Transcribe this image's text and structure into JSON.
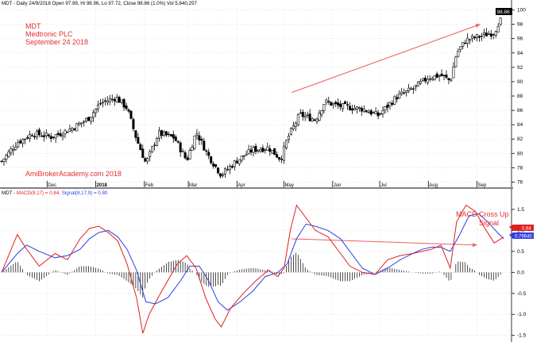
{
  "price_panel": {
    "header": "MDT - Daily 24/9/2018 Open 97.99, Hi 98.96, Lo 97.72, Close 98.86 (1.0%) Vol 5,640,257",
    "annotation_lines": [
      "MDT",
      "Medtronic PLC",
      "September 24 2018"
    ],
    "watermark": "AmiBrokerAcademy.com  2018",
    "last_price_tag": "98.86"
  },
  "macd_panel": {
    "header_prefix": "MDT - ",
    "header_macd": "MACD(8,17) = 0.84,",
    "header_signal": " Signal(8,17,9) = 0.80",
    "annotation_lines": [
      "MACD Cross Up",
      "Signal"
    ],
    "tag_macd": "0.84",
    "tag_signal": "0.79640"
  },
  "colors": {
    "background": "#ffffff",
    "grid": "#d9d9d9",
    "axis": "#000000",
    "annotation_red": "#e03030",
    "macd_line": "#e02020",
    "signal_line": "#2f3fe0",
    "candle": "#000000",
    "histogram": "#000000",
    "trend_arrow": "#e86060"
  },
  "chart_data": [
    {
      "type": "candlestick",
      "symbol": "MDT",
      "title": "MDT - Daily 24/9/2018",
      "x_tick_labels": [
        "Dec",
        "2018",
        "Feb",
        "Mar",
        "Apr",
        "May",
        "Jun",
        "Jul",
        "Aug",
        "Sep"
      ],
      "x_tick_days": [
        29,
        60,
        91,
        119,
        150,
        180,
        211,
        241,
        272,
        303
      ],
      "x_range_days": [
        0,
        324
      ],
      "y_ticks": [
        76,
        78,
        80,
        82,
        84,
        86,
        88,
        90,
        92,
        94,
        96,
        98,
        100
      ],
      "ylim": [
        75.5,
        100.5
      ],
      "grid": true,
      "series_anchor_points": [
        {
          "day": 0,
          "close": 78.9
        },
        {
          "day": 10,
          "close": 81.5
        },
        {
          "day": 20,
          "close": 82.8
        },
        {
          "day": 32,
          "close": 82.3
        },
        {
          "day": 45,
          "close": 83.5
        },
        {
          "day": 55,
          "close": 84.8
        },
        {
          "day": 63,
          "close": 87.0
        },
        {
          "day": 73,
          "close": 87.8
        },
        {
          "day": 80,
          "close": 86.3
        },
        {
          "day": 86,
          "close": 82.0
        },
        {
          "day": 92,
          "close": 78.6
        },
        {
          "day": 100,
          "close": 82.8
        },
        {
          "day": 110,
          "close": 82.2
        },
        {
          "day": 118,
          "close": 79.0
        },
        {
          "day": 124,
          "close": 83.0
        },
        {
          "day": 132,
          "close": 79.6
        },
        {
          "day": 140,
          "close": 77.0
        },
        {
          "day": 150,
          "close": 79.0
        },
        {
          "day": 160,
          "close": 80.5
        },
        {
          "day": 170,
          "close": 80.8
        },
        {
          "day": 178,
          "close": 79.2
        },
        {
          "day": 182,
          "close": 82.0
        },
        {
          "day": 190,
          "close": 85.4
        },
        {
          "day": 200,
          "close": 84.7
        },
        {
          "day": 206,
          "close": 87.2
        },
        {
          "day": 215,
          "close": 86.6
        },
        {
          "day": 230,
          "close": 86.2
        },
        {
          "day": 240,
          "close": 85.3
        },
        {
          "day": 252,
          "close": 87.9
        },
        {
          "day": 262,
          "close": 89.0
        },
        {
          "day": 272,
          "close": 90.6
        },
        {
          "day": 280,
          "close": 90.9
        },
        {
          "day": 286,
          "close": 90.1
        },
        {
          "day": 290,
          "close": 94.0
        },
        {
          "day": 296,
          "close": 95.8
        },
        {
          "day": 306,
          "close": 96.4
        },
        {
          "day": 314,
          "close": 96.9
        },
        {
          "day": 318,
          "close": 98.86
        }
      ],
      "last_bar": {
        "open": 97.99,
        "high": 98.96,
        "low": 97.72,
        "close": 98.86,
        "change_pct": 1.0,
        "volume": 5640257
      },
      "trend_line": {
        "from": {
          "day": 185,
          "price": 88.5
        },
        "to": {
          "day": 305,
          "price": 98.0
        }
      }
    },
    {
      "type": "line",
      "title": "MACD(8,17) / Signal(8,17,9)",
      "ylim": [
        -1.6,
        1.8
      ],
      "y_ticks": [
        -1.5,
        -1.0,
        -0.5,
        0.0,
        0.5,
        1.0,
        1.5
      ],
      "grid": true,
      "series": [
        {
          "name": "MACD(8,17)",
          "last_value": 0.84,
          "points": [
            [
              0,
              0.0
            ],
            [
              10,
              0.9
            ],
            [
              16,
              0.55
            ],
            [
              24,
              0.15
            ],
            [
              34,
              0.45
            ],
            [
              42,
              0.3
            ],
            [
              50,
              0.8
            ],
            [
              56,
              1.05
            ],
            [
              62,
              1.1
            ],
            [
              68,
              0.95
            ],
            [
              74,
              0.75
            ],
            [
              80,
              0.2
            ],
            [
              86,
              -0.6
            ],
            [
              90,
              -1.45
            ],
            [
              94,
              -1.0
            ],
            [
              102,
              -0.45
            ],
            [
              112,
              0.2
            ],
            [
              118,
              0.4
            ],
            [
              124,
              0.1
            ],
            [
              130,
              -0.6
            ],
            [
              136,
              -1.1
            ],
            [
              140,
              -1.3
            ],
            [
              146,
              -0.85
            ],
            [
              154,
              -0.5
            ],
            [
              162,
              -0.2
            ],
            [
              170,
              0.05
            ],
            [
              176,
              -0.1
            ],
            [
              180,
              0.1
            ],
            [
              184,
              1.0
            ],
            [
              188,
              1.6
            ],
            [
              194,
              1.3
            ],
            [
              200,
              1.0
            ],
            [
              208,
              0.85
            ],
            [
              216,
              0.45
            ],
            [
              222,
              0.15
            ],
            [
              230,
              0.0
            ],
            [
              238,
              -0.05
            ],
            [
              246,
              0.3
            ],
            [
              254,
              0.4
            ],
            [
              262,
              0.45
            ],
            [
              268,
              0.5
            ],
            [
              274,
              0.55
            ],
            [
              280,
              0.65
            ],
            [
              286,
              0.1
            ],
            [
              290,
              1.2
            ],
            [
              296,
              1.6
            ],
            [
              302,
              1.45
            ],
            [
              308,
              1.05
            ],
            [
              314,
              0.7
            ],
            [
              320,
              0.84
            ]
          ]
        },
        {
          "name": "Signal(8,17,9)",
          "last_value": 0.8,
          "points": [
            [
              0,
              0.0
            ],
            [
              10,
              0.45
            ],
            [
              16,
              0.65
            ],
            [
              24,
              0.5
            ],
            [
              34,
              0.35
            ],
            [
              42,
              0.4
            ],
            [
              50,
              0.55
            ],
            [
              56,
              0.8
            ],
            [
              62,
              0.95
            ],
            [
              68,
              1.0
            ],
            [
              74,
              0.85
            ],
            [
              80,
              0.55
            ],
            [
              86,
              0.05
            ],
            [
              92,
              -0.7
            ],
            [
              98,
              -0.75
            ],
            [
              106,
              -0.6
            ],
            [
              114,
              -0.2
            ],
            [
              120,
              0.15
            ],
            [
              126,
              0.15
            ],
            [
              132,
              -0.2
            ],
            [
              138,
              -0.7
            ],
            [
              144,
              -0.9
            ],
            [
              152,
              -0.7
            ],
            [
              160,
              -0.45
            ],
            [
              168,
              -0.1
            ],
            [
              176,
              0.0
            ],
            [
              182,
              0.2
            ],
            [
              188,
              0.8
            ],
            [
              194,
              1.15
            ],
            [
              200,
              1.1
            ],
            [
              208,
              1.0
            ],
            [
              216,
              0.8
            ],
            [
              222,
              0.5
            ],
            [
              230,
              0.1
            ],
            [
              238,
              -0.05
            ],
            [
              246,
              0.1
            ],
            [
              254,
              0.3
            ],
            [
              262,
              0.45
            ],
            [
              268,
              0.55
            ],
            [
              274,
              0.6
            ],
            [
              280,
              0.6
            ],
            [
              286,
              0.5
            ],
            [
              292,
              0.9
            ],
            [
              298,
              1.35
            ],
            [
              304,
              1.4
            ],
            [
              310,
              1.2
            ],
            [
              316,
              0.95
            ],
            [
              320,
              0.8
            ]
          ]
        }
      ],
      "histogram_note": "MACD minus Signal shown as vertical bars",
      "trend_line": {
        "from": {
          "day": 185,
          "value": 0.8
        },
        "to": {
          "day": 303,
          "value": 0.65
        }
      }
    }
  ]
}
